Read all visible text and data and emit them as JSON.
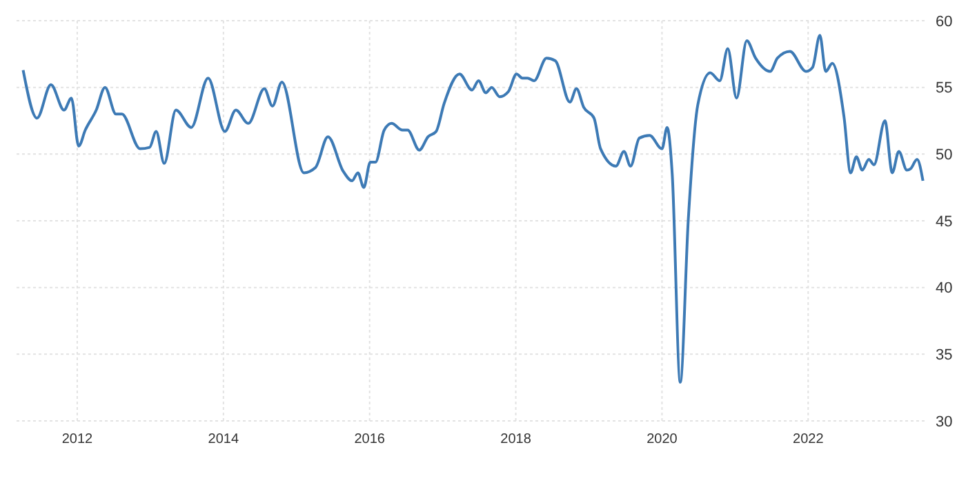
{
  "chart_data": {
    "type": "line",
    "xlim": [
      2011.17,
      2023.63
    ],
    "xticks": [
      2012,
      2014,
      2016,
      2018,
      2020,
      2022
    ],
    "ylim": [
      30,
      60
    ],
    "yticks": [
      30,
      35,
      40,
      45,
      50,
      55,
      60
    ],
    "grid": true,
    "line_style": "solid",
    "marker": "none",
    "series": [
      {
        "color": "#3d7ab5",
        "x": [
          2011.26,
          2011.45,
          2011.64,
          2011.82,
          2011.92,
          2012.02,
          2012.11,
          2012.26,
          2012.38,
          2012.53,
          2012.61,
          2012.86,
          2012.99,
          2013.08,
          2013.19,
          2013.35,
          2013.56,
          2013.79,
          2014.02,
          2014.17,
          2014.34,
          2014.56,
          2014.67,
          2014.8,
          2015.1,
          2015.26,
          2015.43,
          2015.64,
          2015.76,
          2015.84,
          2015.92,
          2016.01,
          2016.08,
          2016.2,
          2016.3,
          2016.45,
          2016.52,
          2016.68,
          2016.8,
          2016.91,
          2017.02,
          2017.23,
          2017.4,
          2017.49,
          2017.59,
          2017.67,
          2017.78,
          2017.9,
          2018.01,
          2018.09,
          2018.16,
          2018.25,
          2018.42,
          2018.54,
          2018.74,
          2018.83,
          2018.93,
          2019.07,
          2019.16,
          2019.37,
          2019.48,
          2019.57,
          2019.69,
          2019.83,
          2020.0,
          2020.07,
          2020.14,
          2020.25,
          2020.36,
          2020.49,
          2020.66,
          2020.79,
          2020.9,
          2021.02,
          2021.16,
          2021.28,
          2021.48,
          2021.58,
          2021.75,
          2021.97,
          2022.06,
          2022.16,
          2022.24,
          2022.33,
          2022.49,
          2022.58,
          2022.66,
          2022.74,
          2022.83,
          2022.9,
          2023.05,
          2023.15,
          2023.24,
          2023.35,
          2023.4,
          2023.49,
          2023.57
        ],
        "values": [
          56.3,
          52.7,
          55.2,
          53.3,
          54.2,
          50.6,
          51.8,
          53.3,
          55.0,
          53.0,
          53.0,
          50.4,
          50.5,
          51.7,
          49.3,
          53.3,
          52.0,
          55.7,
          51.7,
          53.3,
          52.3,
          54.9,
          53.6,
          55.4,
          48.6,
          49.0,
          51.3,
          48.7,
          48.0,
          48.6,
          47.5,
          49.4,
          49.4,
          51.8,
          52.3,
          51.8,
          51.8,
          50.3,
          51.3,
          51.7,
          53.8,
          56.0,
          54.8,
          55.5,
          54.6,
          55.0,
          54.3,
          54.7,
          56.0,
          55.7,
          55.7,
          55.5,
          57.2,
          57.0,
          53.9,
          54.9,
          53.5,
          52.7,
          50.4,
          49.1,
          50.2,
          49.1,
          51.2,
          51.4,
          50.4,
          52.0,
          48.5,
          32.9,
          45.1,
          53.7,
          56.1,
          55.5,
          57.9,
          54.2,
          58.5,
          57.2,
          56.2,
          57.2,
          57.7,
          56.2,
          56.5,
          58.9,
          56.2,
          56.8,
          52.8,
          48.6,
          49.8,
          48.8,
          49.6,
          49.2,
          52.5,
          48.6,
          50.2,
          48.8,
          48.9,
          49.6,
          48.0
        ]
      }
    ]
  }
}
